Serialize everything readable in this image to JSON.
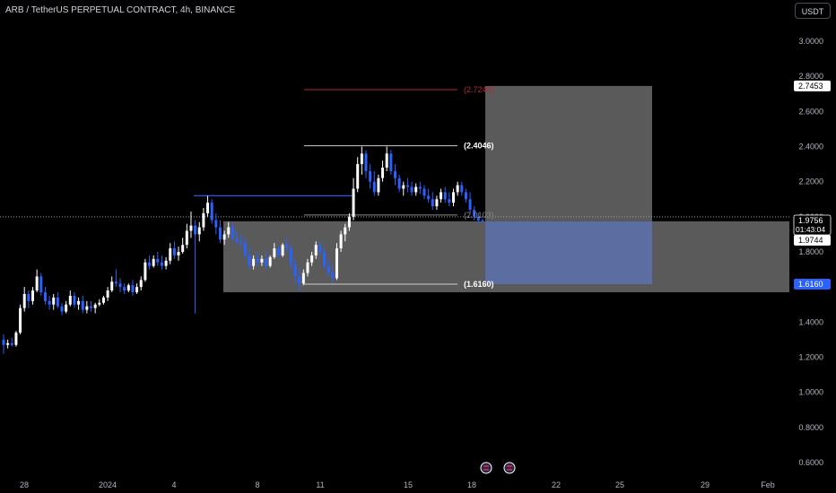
{
  "header": {
    "title": "ARB / TetherUS PERPETUAL CONTRACT, 4h, BINANCE",
    "currency_button": "USDT"
  },
  "colors": {
    "up": "#ffffff",
    "down": "#2962ff",
    "target_line": "#b22833",
    "stop_zone": "#6a6a6a",
    "profit_zone": "#5c6fa8",
    "price_badge": "#2962ff"
  },
  "chart_data": {
    "type": "candlestick",
    "xlabel": "",
    "ylabel": "",
    "ylim": [
      0.54,
      3.18
    ],
    "y_ticks": [
      "3.0000",
      "2.8000",
      "2.6000",
      "2.4000",
      "2.2000",
      "2.0000",
      "1.8000",
      "1.6000",
      "1.4000",
      "1.2000",
      "1.0000",
      "0.8000",
      "0.6000"
    ],
    "x_ticks": [
      "28",
      "2024",
      "4",
      "8",
      "11",
      "15",
      "18",
      "22",
      "25",
      "29",
      "Feb"
    ],
    "annotations": {
      "target_label": "(2.7240)",
      "high_label": "(2.4046)",
      "mid_label": "(2.0103)",
      "low_label": "(1.6160)",
      "target": 2.724,
      "high": 2.4046,
      "mid": 2.0103,
      "low": 1.616
    },
    "price_labels": {
      "top": "2.7453",
      "current": "1.9756",
      "countdown": "01:43:04",
      "entry": "1.9744",
      "stop": "1.6160"
    },
    "candles": [
      [
        1.3,
        1.33,
        1.22,
        1.27
      ],
      [
        1.27,
        1.3,
        1.25,
        1.28
      ],
      [
        1.28,
        1.31,
        1.26,
        1.27
      ],
      [
        1.27,
        1.35,
        1.26,
        1.34
      ],
      [
        1.34,
        1.5,
        1.33,
        1.48
      ],
      [
        1.48,
        1.6,
        1.46,
        1.56
      ],
      [
        1.56,
        1.58,
        1.48,
        1.52
      ],
      [
        1.52,
        1.6,
        1.5,
        1.58
      ],
      [
        1.58,
        1.7,
        1.57,
        1.66
      ],
      [
        1.66,
        1.68,
        1.55,
        1.57
      ],
      [
        1.57,
        1.6,
        1.5,
        1.52
      ],
      [
        1.52,
        1.55,
        1.47,
        1.5
      ],
      [
        1.5,
        1.56,
        1.47,
        1.54
      ],
      [
        1.54,
        1.57,
        1.48,
        1.49
      ],
      [
        1.49,
        1.51,
        1.44,
        1.46
      ],
      [
        1.46,
        1.52,
        1.45,
        1.5
      ],
      [
        1.5,
        1.58,
        1.49,
        1.55
      ],
      [
        1.55,
        1.57,
        1.48,
        1.5
      ],
      [
        1.5,
        1.54,
        1.47,
        1.52
      ],
      [
        1.52,
        1.55,
        1.45,
        1.47
      ],
      [
        1.47,
        1.52,
        1.45,
        1.49
      ],
      [
        1.49,
        1.52,
        1.46,
        1.48
      ],
      [
        1.48,
        1.51,
        1.45,
        1.5
      ],
      [
        1.5,
        1.53,
        1.49,
        1.51
      ],
      [
        1.51,
        1.55,
        1.5,
        1.54
      ],
      [
        1.54,
        1.6,
        1.52,
        1.58
      ],
      [
        1.58,
        1.66,
        1.57,
        1.63
      ],
      [
        1.63,
        1.7,
        1.6,
        1.62
      ],
      [
        1.62,
        1.65,
        1.57,
        1.6
      ],
      [
        1.6,
        1.62,
        1.56,
        1.58
      ],
      [
        1.58,
        1.62,
        1.57,
        1.61
      ],
      [
        1.61,
        1.64,
        1.55,
        1.57
      ],
      [
        1.57,
        1.62,
        1.56,
        1.6
      ],
      [
        1.6,
        1.66,
        1.58,
        1.64
      ],
      [
        1.64,
        1.76,
        1.63,
        1.74
      ],
      [
        1.74,
        1.78,
        1.7,
        1.72
      ],
      [
        1.72,
        1.78,
        1.71,
        1.76
      ],
      [
        1.76,
        1.8,
        1.72,
        1.74
      ],
      [
        1.74,
        1.78,
        1.7,
        1.72
      ],
      [
        1.72,
        1.77,
        1.7,
        1.75
      ],
      [
        1.75,
        1.85,
        1.73,
        1.82
      ],
      [
        1.82,
        1.86,
        1.76,
        1.78
      ],
      [
        1.78,
        1.83,
        1.75,
        1.8
      ],
      [
        1.8,
        1.88,
        1.79,
        1.84
      ],
      [
        1.84,
        1.96,
        1.82,
        1.92
      ],
      [
        1.92,
        2.03,
        1.88,
        1.95
      ],
      [
        1.95,
        1.98,
        1.45,
        1.9
      ],
      [
        1.9,
        1.97,
        1.86,
        1.94
      ],
      [
        1.94,
        2.05,
        1.92,
        2.02
      ],
      [
        2.02,
        2.12,
        2.0,
        2.08
      ],
      [
        2.08,
        2.1,
        1.96,
        1.98
      ],
      [
        1.98,
        2.02,
        1.9,
        1.94
      ],
      [
        1.94,
        1.98,
        1.85,
        1.87
      ],
      [
        1.87,
        1.92,
        1.84,
        1.9
      ],
      [
        1.9,
        1.97,
        1.88,
        1.94
      ],
      [
        1.94,
        1.97,
        1.86,
        1.88
      ],
      [
        1.88,
        1.92,
        1.84,
        1.86
      ],
      [
        1.86,
        1.9,
        1.82,
        1.85
      ],
      [
        1.85,
        1.88,
        1.76,
        1.78
      ],
      [
        1.78,
        1.82,
        1.7,
        1.72
      ],
      [
        1.72,
        1.78,
        1.7,
        1.76
      ],
      [
        1.76,
        1.8,
        1.72,
        1.74
      ],
      [
        1.74,
        1.78,
        1.72,
        1.76
      ],
      [
        1.76,
        1.8,
        1.7,
        1.72
      ],
      [
        1.72,
        1.78,
        1.71,
        1.77
      ],
      [
        1.77,
        1.85,
        1.76,
        1.82
      ],
      [
        1.82,
        1.84,
        1.76,
        1.78
      ],
      [
        1.78,
        1.85,
        1.77,
        1.84
      ],
      [
        1.84,
        1.88,
        1.8,
        1.82
      ],
      [
        1.82,
        1.84,
        1.7,
        1.73
      ],
      [
        1.73,
        1.76,
        1.62,
        1.66
      ],
      [
        1.66,
        1.7,
        1.58,
        1.62
      ],
      [
        1.62,
        1.7,
        1.61,
        1.68
      ],
      [
        1.68,
        1.76,
        1.66,
        1.74
      ],
      [
        1.74,
        1.8,
        1.72,
        1.78
      ],
      [
        1.78,
        1.86,
        1.76,
        1.84
      ],
      [
        1.84,
        1.86,
        1.78,
        1.8
      ],
      [
        1.8,
        1.82,
        1.7,
        1.72
      ],
      [
        1.72,
        1.76,
        1.66,
        1.68
      ],
      [
        1.68,
        1.72,
        1.62,
        1.65
      ],
      [
        1.65,
        1.85,
        1.64,
        1.82
      ],
      [
        1.82,
        1.92,
        1.8,
        1.9
      ],
      [
        1.9,
        1.96,
        1.86,
        1.94
      ],
      [
        1.94,
        2.02,
        1.92,
        2.0
      ],
      [
        2.0,
        2.22,
        1.98,
        2.16
      ],
      [
        2.16,
        2.34,
        2.14,
        2.3
      ],
      [
        2.3,
        2.4,
        2.24,
        2.36
      ],
      [
        2.36,
        2.38,
        2.22,
        2.26
      ],
      [
        2.26,
        2.3,
        2.16,
        2.2
      ],
      [
        2.2,
        2.26,
        2.12,
        2.14
      ],
      [
        2.14,
        2.24,
        2.12,
        2.22
      ],
      [
        2.22,
        2.32,
        2.2,
        2.28
      ],
      [
        2.28,
        2.4,
        2.26,
        2.36
      ],
      [
        2.36,
        2.38,
        2.24,
        2.26
      ],
      [
        2.26,
        2.3,
        2.18,
        2.22
      ],
      [
        2.22,
        2.24,
        2.14,
        2.16
      ],
      [
        2.16,
        2.2,
        2.12,
        2.18
      ],
      [
        2.18,
        2.22,
        2.14,
        2.17
      ],
      [
        2.17,
        2.2,
        2.12,
        2.14
      ],
      [
        2.14,
        2.19,
        2.12,
        2.17
      ],
      [
        2.17,
        2.2,
        2.13,
        2.16
      ],
      [
        2.16,
        2.18,
        2.1,
        2.12
      ],
      [
        2.12,
        2.16,
        2.08,
        2.1
      ],
      [
        2.1,
        2.14,
        2.04,
        2.06
      ],
      [
        2.06,
        2.12,
        2.04,
        2.1
      ],
      [
        2.1,
        2.16,
        2.08,
        2.14
      ],
      [
        2.14,
        2.17,
        2.08,
        2.1
      ],
      [
        2.1,
        2.14,
        2.06,
        2.08
      ],
      [
        2.08,
        2.16,
        2.06,
        2.14
      ],
      [
        2.14,
        2.2,
        2.12,
        2.18
      ],
      [
        2.18,
        2.2,
        2.12,
        2.14
      ],
      [
        2.14,
        2.16,
        2.08,
        2.1
      ],
      [
        2.1,
        2.14,
        2.02,
        2.04
      ],
      [
        2.04,
        2.06,
        1.98,
        2.0
      ],
      [
        2.0,
        2.02,
        1.96,
        1.98
      ],
      [
        1.98,
        1.99,
        1.96,
        1.9756
      ]
    ]
  }
}
